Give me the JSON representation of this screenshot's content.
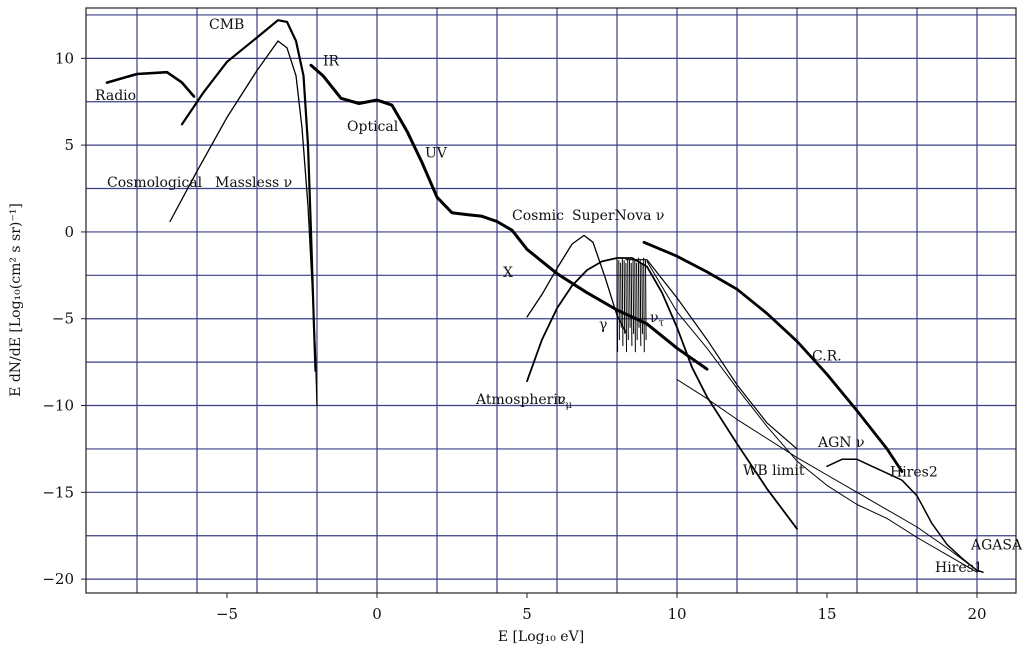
{
  "chart_data": {
    "type": "line",
    "xlabel": "E [Log₁₀ eV]",
    "ylabel": "E dN/dE [Log₁₀(cm² s sr)⁻¹]",
    "xlim": [
      -9.7,
      21.3
    ],
    "ylim": [
      -20.8,
      12.9
    ],
    "xticks": [
      -5,
      0,
      5,
      10,
      15,
      20
    ],
    "yticks": [
      10,
      5,
      0,
      -5,
      -10,
      -15,
      -20
    ],
    "grid_x": [
      -8,
      -6,
      -4,
      -2,
      0,
      2,
      4,
      6,
      8,
      10,
      12,
      14,
      16,
      18,
      20
    ],
    "grid_y": [
      12.5,
      10,
      7.5,
      5,
      2.5,
      0,
      -2.5,
      -5,
      -7.5,
      -10,
      -12.5,
      -15,
      -17.5,
      -20
    ],
    "grid": true,
    "annotations": [
      {
        "text": "CMB",
        "x": -5.6,
        "y": 11.7
      },
      {
        "text": "IR",
        "x": -1.8,
        "y": 9.6
      },
      {
        "text": "Radio",
        "x": -9.4,
        "y": 7.6
      },
      {
        "text": "Optical",
        "x": -1.0,
        "y": 5.8
      },
      {
        "text": "UV",
        "x": 1.6,
        "y": 4.3
      },
      {
        "text": "Cosmological",
        "x": -9.0,
        "y": 2.6
      },
      {
        "text": "Massless ν",
        "x": -5.4,
        "y": 2.6
      },
      {
        "text": "Cosmic",
        "x": 4.5,
        "y": 0.7
      },
      {
        "text": "SuperNova ν",
        "x": 6.5,
        "y": 0.7
      },
      {
        "text": "X",
        "x": 4.2,
        "y": -2.6
      },
      {
        "text": "γ",
        "x": 7.4,
        "y": -5.6
      },
      {
        "text": "ν_τ",
        "x": 9.1,
        "y": -5.2
      },
      {
        "text": "C.R.",
        "x": 14.5,
        "y": -7.4
      },
      {
        "text": "Atmospheric",
        "x": 3.3,
        "y": -9.9
      },
      {
        "text": "ν_μ",
        "x": 6.0,
        "y": -9.9
      },
      {
        "text": "AGN ν",
        "x": 14.7,
        "y": -12.4
      },
      {
        "text": "WB limit",
        "x": 12.2,
        "y": -14.0
      },
      {
        "text": "Hires2",
        "x": 17.1,
        "y": -14.1
      },
      {
        "text": "AGASA",
        "x": 19.8,
        "y": -18.3
      },
      {
        "text": "Hires1",
        "x": 18.6,
        "y": -19.6
      }
    ],
    "series": [
      {
        "width": 2.6,
        "points": [
          [
            -9,
            8.6
          ],
          [
            -8,
            9.1
          ],
          [
            -7,
            9.2
          ],
          [
            -6.5,
            8.6
          ],
          [
            -6.1,
            7.8
          ]
        ]
      },
      {
        "width": 2.2,
        "points": [
          [
            -6.5,
            6.2
          ],
          [
            -5.8,
            8.0
          ],
          [
            -5,
            9.8
          ],
          [
            -4,
            11.2
          ],
          [
            -3.3,
            12.2
          ],
          [
            -3,
            12.1
          ],
          [
            -2.7,
            11.0
          ],
          [
            -2.45,
            9.0
          ],
          [
            -2.3,
            5.0
          ],
          [
            -2.2,
            0
          ],
          [
            -2.1,
            -5.5
          ],
          [
            -2.05,
            -8.0
          ]
        ]
      },
      {
        "width": 1.3,
        "points": [
          [
            -6.9,
            0.6
          ],
          [
            -6,
            3.5
          ],
          [
            -5,
            6.6
          ],
          [
            -4,
            9.3
          ],
          [
            -3.3,
            11.0
          ],
          [
            -3,
            10.6
          ],
          [
            -2.7,
            9.0
          ],
          [
            -2.5,
            6.0
          ],
          [
            -2.3,
            1.5
          ],
          [
            -2.15,
            -3.5
          ],
          [
            -2.05,
            -7.0
          ],
          [
            -2,
            -10.0
          ]
        ]
      },
      {
        "width": 3.0,
        "points": [
          [
            -2.2,
            9.6
          ],
          [
            -1.8,
            9.0
          ],
          [
            -1.2,
            7.7
          ],
          [
            -0.6,
            7.4
          ],
          [
            0,
            7.6
          ],
          [
            0.5,
            7.3
          ],
          [
            1,
            5.8
          ],
          [
            1.5,
            4.0
          ],
          [
            2,
            2.0
          ],
          [
            2.5,
            1.1
          ],
          [
            3,
            1.0
          ],
          [
            3.5,
            0.9
          ],
          [
            4,
            0.6
          ],
          [
            4.5,
            0.1
          ],
          [
            5,
            -1.0
          ],
          [
            6,
            -2.4
          ],
          [
            7,
            -3.5
          ],
          [
            8,
            -4.5
          ],
          [
            9,
            -5.3
          ],
          [
            10,
            -6.7
          ],
          [
            11,
            -7.9
          ]
        ]
      },
      {
        "width": 1.3,
        "points": [
          [
            5,
            -4.9
          ],
          [
            5.5,
            -3.6
          ],
          [
            6,
            -2.1
          ],
          [
            6.5,
            -0.7
          ],
          [
            6.9,
            -0.2
          ],
          [
            7.2,
            -0.6
          ],
          [
            7.6,
            -2.6
          ],
          [
            8,
            -4.8
          ],
          [
            8.3,
            -5.8
          ]
        ]
      },
      {
        "width": 1.8,
        "points": [
          [
            5,
            -8.6
          ],
          [
            5.5,
            -6.2
          ],
          [
            6,
            -4.4
          ],
          [
            6.5,
            -3.1
          ],
          [
            7,
            -2.2
          ],
          [
            7.5,
            -1.7
          ],
          [
            8,
            -1.5
          ],
          [
            8.5,
            -1.5
          ],
          [
            9,
            -2.0
          ],
          [
            9.5,
            -3.5
          ],
          [
            10,
            -5.5
          ],
          [
            10.5,
            -7.8
          ],
          [
            11,
            -9.5
          ],
          [
            12,
            -12.2
          ],
          [
            13,
            -14.8
          ],
          [
            14,
            -17.1
          ]
        ]
      },
      {
        "width": 1.2,
        "points": [
          [
            8.3,
            -1.6
          ],
          [
            9,
            -1.6
          ],
          [
            10,
            -3.8
          ],
          [
            11,
            -6.2
          ],
          [
            12,
            -8.8
          ],
          [
            13,
            -11.0
          ],
          [
            14,
            -12.5
          ]
        ]
      },
      {
        "width": 1.0,
        "points": [
          [
            9,
            -1.7
          ],
          [
            10,
            -4.6
          ],
          [
            11,
            -6.7
          ],
          [
            12,
            -9.0
          ],
          [
            13,
            -11.2
          ],
          [
            14,
            -13.2
          ],
          [
            15,
            -14.6
          ],
          [
            16,
            -15.7
          ],
          [
            17,
            -16.5
          ],
          [
            18,
            -17.6
          ],
          [
            19,
            -18.6
          ],
          [
            20,
            -19.6
          ]
        ]
      },
      {
        "width": 2.8,
        "points": [
          [
            8.9,
            -0.6
          ],
          [
            10,
            -1.4
          ],
          [
            11,
            -2.3
          ],
          [
            12,
            -3.3
          ],
          [
            13,
            -4.7
          ],
          [
            14,
            -6.3
          ],
          [
            15,
            -8.2
          ],
          [
            16,
            -10.3
          ],
          [
            17,
            -12.5
          ],
          [
            17.5,
            -13.8
          ]
        ]
      },
      {
        "width": 1.0,
        "points": [
          [
            10,
            -8.5
          ],
          [
            11,
            -9.6
          ],
          [
            12,
            -10.8
          ],
          [
            13,
            -11.9
          ],
          [
            14,
            -13.0
          ],
          [
            15,
            -14.0
          ],
          [
            16,
            -15.0
          ],
          [
            17,
            -16.0
          ],
          [
            18,
            -17.0
          ],
          [
            19,
            -18.2
          ],
          [
            20,
            -19.5
          ]
        ]
      },
      {
        "width": 1.5,
        "points": [
          [
            15,
            -13.5
          ],
          [
            15.5,
            -13.1
          ],
          [
            16,
            -13.1
          ],
          [
            16.5,
            -13.5
          ],
          [
            17,
            -13.9
          ],
          [
            17.5,
            -14.3
          ],
          [
            18,
            -15.2
          ],
          [
            18.5,
            -16.8
          ],
          [
            19,
            -18.0
          ],
          [
            19.5,
            -18.8
          ],
          [
            20,
            -19.5
          ],
          [
            20.2,
            -19.6
          ]
        ]
      }
    ],
    "spikes": {
      "width": 1.0,
      "x_from": 8.0,
      "x_to": 8.95,
      "y_top": -1.5,
      "y_bottom": -6.9
    }
  }
}
